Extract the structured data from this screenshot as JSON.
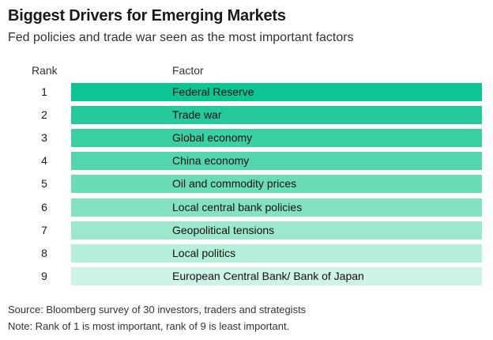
{
  "header": {
    "title": "Biggest Drivers for Emerging Markets",
    "subtitle": "Fed policies and trade war seen as the most important factors"
  },
  "columns": {
    "rank": "Rank",
    "factor": "Factor"
  },
  "chart_data": {
    "type": "table",
    "title": "Biggest Drivers for Emerging Markets",
    "subtitle": "Fed policies and trade war seen as the most important factors",
    "columns": [
      "Rank",
      "Factor"
    ],
    "rows": [
      {
        "rank": "1",
        "factor": "Federal Reserve",
        "color": "#0dc493"
      },
      {
        "rank": "2",
        "factor": "Trade war",
        "color": "#25c99c"
      },
      {
        "rank": "3",
        "factor": "Global economy",
        "color": "#3bcfa4"
      },
      {
        "rank": "4",
        "factor": "China economy",
        "color": "#53d6ad"
      },
      {
        "rank": "5",
        "factor": "Oil and commodity prices",
        "color": "#6bdcb7"
      },
      {
        "rank": "6",
        "factor": "Local central bank policies",
        "color": "#84e2c2"
      },
      {
        "rank": "7",
        "factor": "Geopolitical tensions",
        "color": "#9de8cd"
      },
      {
        "rank": "8",
        "factor": "Local politics",
        "color": "#b5eed9"
      },
      {
        "rank": "9",
        "factor": "European Central Bank/ Bank of Japan",
        "color": "#cdf4e6"
      }
    ]
  },
  "footer": {
    "source": "Source: Bloomberg survey of 30 investors, traders and strategists",
    "note": "Note: Rank of 1 is most important, rank of 9 is least important."
  }
}
